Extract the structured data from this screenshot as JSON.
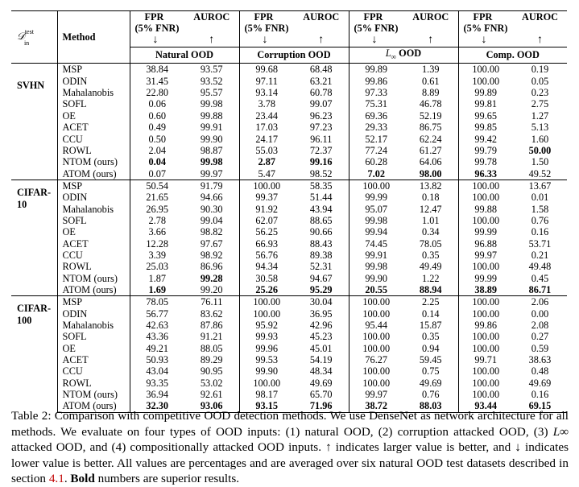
{
  "header": {
    "corner_label_main": "𝒟",
    "corner_label_sup": "test",
    "corner_label_sub": "in",
    "method": "Method",
    "metric1_line1": "FPR",
    "metric1_line2": "(5% FNR)",
    "metric2": "AUROC",
    "down_arrow": "↓",
    "up_arrow": "↑",
    "groups": [
      "Natural OOD",
      "Corruption OOD",
      "L∞ OOD",
      "Comp. OOD"
    ]
  },
  "datasets": [
    {
      "name_lines": [
        "SVHN"
      ],
      "rows": [
        {
          "method": "MSP",
          "values": [
            "38.84",
            "93.57",
            "99.68",
            "68.48",
            "99.89",
            "1.39",
            "100.00",
            "0.19"
          ],
          "bold": []
        },
        {
          "method": "ODIN",
          "values": [
            "31.45",
            "93.52",
            "97.11",
            "63.21",
            "99.86",
            "0.61",
            "100.00",
            "0.05"
          ],
          "bold": []
        },
        {
          "method": "Mahalanobis",
          "values": [
            "22.80",
            "95.57",
            "93.14",
            "60.78",
            "97.33",
            "8.89",
            "99.89",
            "0.23"
          ],
          "bold": []
        },
        {
          "method": "SOFL",
          "values": [
            "0.06",
            "99.98",
            "3.78",
            "99.07",
            "75.31",
            "46.78",
            "99.81",
            "2.75"
          ],
          "bold": []
        },
        {
          "method": "OE",
          "values": [
            "0.60",
            "99.88",
            "23.44",
            "96.23",
            "69.36",
            "52.19",
            "99.65",
            "1.27"
          ],
          "bold": []
        },
        {
          "method": "ACET",
          "values": [
            "0.49",
            "99.91",
            "17.03",
            "97.23",
            "29.33",
            "86.75",
            "99.85",
            "5.13"
          ],
          "bold": []
        },
        {
          "method": "CCU",
          "values": [
            "0.50",
            "99.90",
            "24.17",
            "96.11",
            "52.17",
            "62.24",
            "99.42",
            "1.60"
          ],
          "bold": []
        },
        {
          "method": "ROWL",
          "values": [
            "2.04",
            "98.87",
            "55.03",
            "72.37",
            "77.24",
            "61.27",
            "99.79",
            "50.00"
          ],
          "bold": [
            7
          ]
        },
        {
          "method": "NTOM (ours)",
          "values": [
            "0.04",
            "99.98",
            "2.87",
            "99.16",
            "60.28",
            "64.06",
            "99.78",
            "1.50"
          ],
          "bold": [
            0,
            1,
            2,
            3
          ]
        },
        {
          "method": "ATOM (ours)",
          "values": [
            "0.07",
            "99.97",
            "5.47",
            "98.52",
            "7.02",
            "98.00",
            "96.33",
            "49.52"
          ],
          "bold": [
            4,
            5,
            6
          ]
        }
      ]
    },
    {
      "name_lines": [
        "CIFAR-",
        "10"
      ],
      "rows": [
        {
          "method": "MSP",
          "values": [
            "50.54",
            "91.79",
            "100.00",
            "58.35",
            "100.00",
            "13.82",
            "100.00",
            "13.67"
          ],
          "bold": []
        },
        {
          "method": "ODIN",
          "values": [
            "21.65",
            "94.66",
            "99.37",
            "51.44",
            "99.99",
            "0.18",
            "100.00",
            "0.01"
          ],
          "bold": []
        },
        {
          "method": "Mahalanobis",
          "values": [
            "26.95",
            "90.30",
            "91.92",
            "43.94",
            "95.07",
            "12.47",
            "99.88",
            "1.58"
          ],
          "bold": []
        },
        {
          "method": "SOFL",
          "values": [
            "2.78",
            "99.04",
            "62.07",
            "88.65",
            "99.98",
            "1.01",
            "100.00",
            "0.76"
          ],
          "bold": []
        },
        {
          "method": "OE",
          "values": [
            "3.66",
            "98.82",
            "56.25",
            "90.66",
            "99.94",
            "0.34",
            "99.99",
            "0.16"
          ],
          "bold": []
        },
        {
          "method": "ACET",
          "values": [
            "12.28",
            "97.67",
            "66.93",
            "88.43",
            "74.45",
            "78.05",
            "96.88",
            "53.71"
          ],
          "bold": []
        },
        {
          "method": "CCU",
          "values": [
            "3.39",
            "98.92",
            "56.76",
            "89.38",
            "99.91",
            "0.35",
            "99.97",
            "0.21"
          ],
          "bold": []
        },
        {
          "method": "ROWL",
          "values": [
            "25.03",
            "86.96",
            "94.34",
            "52.31",
            "99.98",
            "49.49",
            "100.00",
            "49.48"
          ],
          "bold": []
        },
        {
          "method": "NTOM (ours)",
          "values": [
            "1.87",
            "99.28",
            "30.58",
            "94.67",
            "99.90",
            "1.22",
            "99.99",
            "0.45"
          ],
          "bold": [
            1
          ]
        },
        {
          "method": "ATOM (ours)",
          "values": [
            "1.69",
            "99.20",
            "25.26",
            "95.29",
            "20.55",
            "88.94",
            "38.89",
            "86.71"
          ],
          "bold": [
            0,
            2,
            3,
            4,
            5,
            6,
            7
          ]
        }
      ]
    },
    {
      "name_lines": [
        "CIFAR-",
        "100"
      ],
      "rows": [
        {
          "method": "MSP",
          "values": [
            "78.05",
            "76.11",
            "100.00",
            "30.04",
            "100.00",
            "2.25",
            "100.00",
            "2.06"
          ],
          "bold": []
        },
        {
          "method": "ODIN",
          "values": [
            "56.77",
            "83.62",
            "100.00",
            "36.95",
            "100.00",
            "0.14",
            "100.00",
            "0.00"
          ],
          "bold": []
        },
        {
          "method": "Mahalanobis",
          "values": [
            "42.63",
            "87.86",
            "95.92",
            "42.96",
            "95.44",
            "15.87",
            "99.86",
            "2.08"
          ],
          "bold": []
        },
        {
          "method": "SOFL",
          "values": [
            "43.36",
            "91.21",
            "99.93",
            "45.23",
            "100.00",
            "0.35",
            "100.00",
            "0.27"
          ],
          "bold": []
        },
        {
          "method": "OE",
          "values": [
            "49.21",
            "88.05",
            "99.96",
            "45.01",
            "100.00",
            "0.94",
            "100.00",
            "0.59"
          ],
          "bold": []
        },
        {
          "method": "ACET",
          "values": [
            "50.93",
            "89.29",
            "99.53",
            "54.19",
            "76.27",
            "59.45",
            "99.71",
            "38.63"
          ],
          "bold": []
        },
        {
          "method": "CCU",
          "values": [
            "43.04",
            "90.95",
            "99.90",
            "48.34",
            "100.00",
            "0.75",
            "100.00",
            "0.48"
          ],
          "bold": []
        },
        {
          "method": "ROWL",
          "values": [
            "93.35",
            "53.02",
            "100.00",
            "49.69",
            "100.00",
            "49.69",
            "100.00",
            "49.69"
          ],
          "bold": []
        },
        {
          "method": "NTOM (ours)",
          "values": [
            "36.94",
            "92.61",
            "98.17",
            "65.70",
            "99.97",
            "0.76",
            "100.00",
            "0.16"
          ],
          "bold": []
        },
        {
          "method": "ATOM (ours)",
          "values": [
            "32.30",
            "93.06",
            "93.15",
            "71.96",
            "38.72",
            "88.03",
            "93.44",
            "69.15"
          ],
          "bold": [
            0,
            1,
            2,
            3,
            4,
            5,
            6,
            7
          ]
        }
      ]
    }
  ],
  "caption": {
    "label": "Table 2:",
    "part1": "Comparison with competitive OOD detection methods. We use DenseNet as network architecture for all methods. We evaluate on four types of OOD inputs: (1) natural OOD, (2) corruption attacked OOD, (3) ",
    "math": "L∞",
    "part2": " attacked OOD, and (4) compositionally attacked OOD inputs. ↑ indicates larger value is better, and ↓ indicates lower value is better. All values are percentages and are averaged over six natural OOD test datasets described in section ",
    "ref": "4.1",
    "part3": ". ",
    "bold_text": "Bold",
    "part4": " numbers are superior results."
  }
}
